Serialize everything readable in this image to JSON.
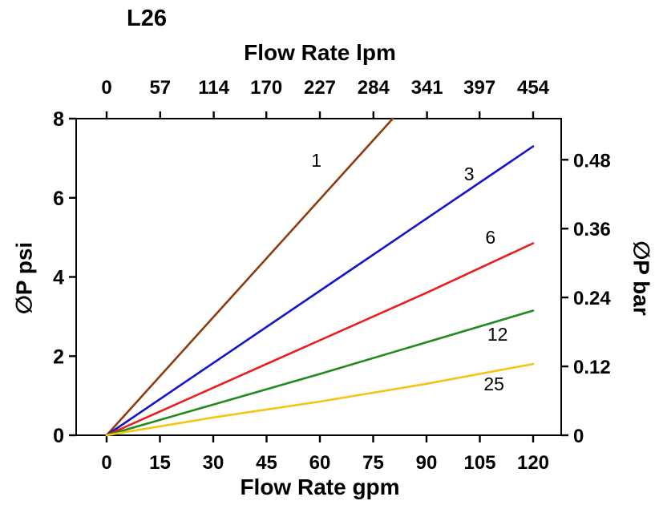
{
  "title": "L26",
  "chart_data": {
    "type": "line",
    "title": "L26",
    "grid": false,
    "legend": "inline-labels-on-lines",
    "x_axis_bottom": {
      "label": "Flow Rate gpm",
      "ticks": [
        0,
        15,
        30,
        45,
        60,
        75,
        90,
        105,
        120
      ],
      "range": [
        0,
        120
      ]
    },
    "x_axis_top": {
      "label": "Flow Rate lpm",
      "ticks": [
        0,
        57,
        114,
        170,
        227,
        284,
        341,
        397,
        454
      ],
      "range": [
        0,
        454
      ]
    },
    "y_axis_left": {
      "label": "∅P psi",
      "ticks": [
        0,
        2,
        4,
        6,
        8
      ],
      "range": [
        0,
        8
      ]
    },
    "y_axis_right": {
      "label": "∅P bar",
      "ticks": [
        0,
        0.12,
        0.24,
        0.36,
        0.48
      ],
      "psi_per_bar": 14.5038
    },
    "series": [
      {
        "name": "1",
        "color": "#8e3c0e",
        "points_gpm_psi": [
          [
            0,
            0
          ],
          [
            80.5,
            8
          ]
        ],
        "label_at": [
          59,
          6.95
        ]
      },
      {
        "name": "3",
        "color": "#1414cc",
        "points_gpm_psi": [
          [
            0,
            0
          ],
          [
            120,
            7.3
          ]
        ],
        "label_at": [
          102,
          6.6
        ]
      },
      {
        "name": "6",
        "color": "#ec1c1c",
        "points_gpm_psi": [
          [
            0,
            0
          ],
          [
            45,
            1.8
          ],
          [
            90,
            3.6
          ],
          [
            120,
            4.85
          ]
        ],
        "label_at": [
          108,
          5.0
        ]
      },
      {
        "name": "12",
        "color": "#1f8b1f",
        "points_gpm_psi": [
          [
            0,
            0
          ],
          [
            60,
            1.55
          ],
          [
            120,
            3.15
          ]
        ],
        "label_at": [
          110,
          2.55
        ]
      },
      {
        "name": "25",
        "color": "#f2c513",
        "points_gpm_psi": [
          [
            0,
            0
          ],
          [
            30,
            0.45
          ],
          [
            60,
            0.85
          ],
          [
            90,
            1.3
          ],
          [
            120,
            1.8
          ]
        ],
        "label_at": [
          109,
          1.3
        ]
      }
    ]
  }
}
